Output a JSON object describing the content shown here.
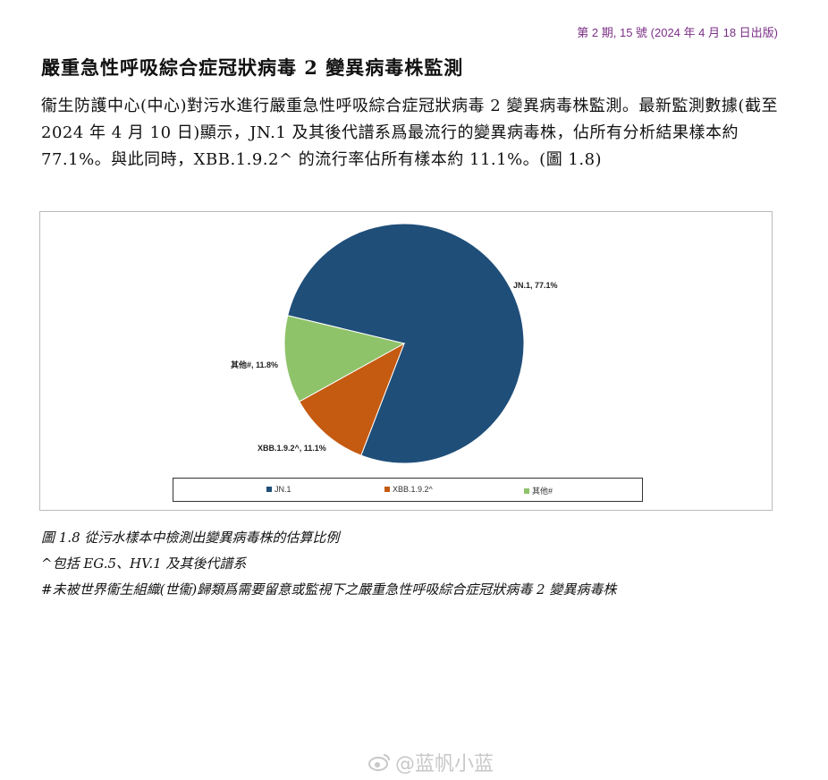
{
  "header": {
    "issue": "第 2 期, 15 號 (2024 年 4 月 18 日出版)"
  },
  "title": "嚴重急性呼吸綜合症冠狀病毒 2 變異病毒株監測",
  "paragraph": "衞生防護中心(中心)對污水進行嚴重急性呼吸綜合症冠狀病毒 2 變異病毒株監測。最新監測數據(截至 2024 年 4 月 10 日)顯示，JN.1 及其後代譜系爲最流行的變異病毒株，佔所有分析結果樣本約 77.1%。與此同時，XBB.1.9.2^ 的流行率佔所有樣本約 11.1%。(圖 1.8)",
  "chart_data": {
    "type": "pie",
    "slices": [
      {
        "name": "JN.1",
        "value": 77.1,
        "label": "JN.1, 77.1%",
        "color": "#1f4e79"
      },
      {
        "name": "XBB.1.9.2^",
        "value": 11.1,
        "label": "XBB.1.9.2^, 11.1%",
        "color": "#c55a11"
      },
      {
        "name": "其他#",
        "value": 11.8,
        "label": "其他#, 11.8%",
        "color": "#8fc36a"
      }
    ],
    "legend_position": "bottom"
  },
  "captions": {
    "figure": "圖 1.8 從污水樣本中檢測出變異病毒株的估算比例",
    "note1": "^包括 EG.5、HV.1 及其後代譜系",
    "note2": "#未被世界衞生組織(世衞)歸類爲需要留意或監視下之嚴重急性呼吸綜合症冠狀病毒 2 變異病毒株"
  },
  "watermark": {
    "text": "@蓝帆小蓝",
    "icon": "weibo-icon"
  }
}
